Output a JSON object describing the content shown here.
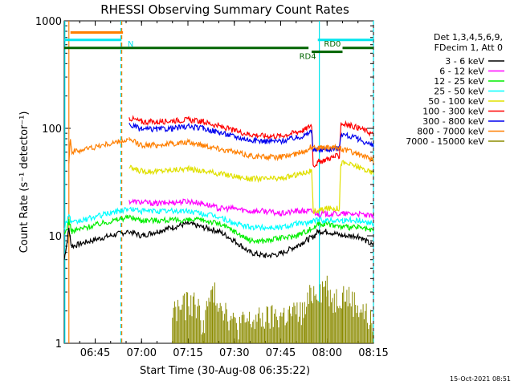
{
  "chart_data": {
    "type": "line",
    "title": "RHESSI Observing Summary Count Rates",
    "xlabel": "Start Time (30-Aug-08 06:35:22)",
    "ylabel": "Count Rate (s⁻¹ detector⁻¹)",
    "yscale": "log",
    "ylim": [
      1,
      1000
    ],
    "xlim_min": [
      0,
      100
    ],
    "x_ticks": [
      "06:45",
      "07:00",
      "07:15",
      "07:30",
      "07:45",
      "08:00",
      "08:15"
    ],
    "x_tick_minutes": [
      10,
      25,
      40,
      55,
      70,
      85,
      100
    ],
    "y_ticks": [
      "1",
      "10",
      "100",
      "1000"
    ],
    "y_tick_values": [
      1,
      10,
      100,
      1000
    ],
    "legend_header": [
      "Det 1,3,4,5,6,9,",
      "FDecim 1, Att 0"
    ],
    "annotations": [
      {
        "text": "N",
        "at_min": 20.5,
        "y": 620,
        "color": "#00e5ee"
      },
      {
        "text": "RD0",
        "at_min": 84,
        "y": 620,
        "color": "#006400"
      },
      {
        "text": "RD4",
        "at_min": 76,
        "y": 475,
        "color": "#006400"
      }
    ],
    "flag_bars": [
      {
        "name": "E",
        "color": "#ff7f00",
        "segments": [
          [
            2,
            19
          ]
        ],
        "y": 780
      },
      {
        "name": "N",
        "color": "#00e5ee",
        "segments": [
          [
            0,
            18.5
          ],
          [
            82,
            100
          ]
        ],
        "y": 665
      },
      {
        "name": "RD0",
        "color": "#006400",
        "segments": [
          [
            0,
            79
          ],
          [
            90,
            100
          ]
        ],
        "y": 560
      },
      {
        "name": "RD4",
        "color": "#006400",
        "segments": [
          [
            80,
            90
          ]
        ],
        "y": 515
      }
    ],
    "vlines": [
      {
        "at_min": 0.2,
        "color": "#00e5ee",
        "style": "solid"
      },
      {
        "at_min": 1.5,
        "color": "#ff7f00",
        "style": "solid"
      },
      {
        "at_min": 18.3,
        "color": "#00e5ee",
        "style": "dashed"
      },
      {
        "at_min": 18.6,
        "color": "#ff7f00",
        "style": "dashed"
      },
      {
        "at_min": 82.5,
        "color": "#00e5ee",
        "style": "solid"
      },
      {
        "at_min": 100,
        "color": "#00e5ee",
        "style": "dashed"
      }
    ],
    "series": [
      {
        "name": "3 - 6 keV",
        "color": "#000000",
        "x": [
          0,
          1,
          1.5,
          2,
          2.5,
          21,
          25,
          30,
          35,
          40,
          45,
          50,
          55,
          60,
          65,
          70,
          75,
          78,
          81,
          82,
          85,
          90,
          95,
          100
        ],
        "y": [
          6,
          9,
          12,
          9,
          8,
          11,
          10,
          11,
          12,
          13,
          12,
          11,
          9,
          7,
          6.5,
          6.8,
          8,
          9,
          10,
          11,
          11,
          10,
          10,
          8
        ]
      },
      {
        "name": "6 - 12 keV",
        "color": "#ff00ff",
        "x": [
          21,
          30,
          40,
          45,
          50,
          55,
          60,
          65,
          70,
          75,
          78,
          80,
          82,
          85,
          90,
          95,
          100
        ],
        "y": [
          21,
          20,
          21,
          20,
          18,
          18,
          17,
          17,
          16,
          17,
          17,
          17,
          16,
          16,
          16,
          16,
          15
        ]
      },
      {
        "name": "12 - 25 keV",
        "color": "#00ee00",
        "x": [
          0,
          1,
          1.5,
          2,
          2.5,
          21,
          25,
          30,
          35,
          40,
          45,
          50,
          55,
          60,
          65,
          70,
          75,
          78,
          81,
          82,
          85,
          90,
          95,
          100
        ],
        "y": [
          10,
          12,
          14,
          12,
          11,
          15,
          14,
          14,
          14,
          14,
          14,
          13,
          11,
          9,
          9,
          9.5,
          10,
          11,
          12,
          13,
          13,
          12,
          12,
          11
        ]
      },
      {
        "name": "25 - 50 keV",
        "color": "#00ffff",
        "x": [
          0,
          1,
          1.5,
          2,
          2.5,
          21,
          25,
          30,
          35,
          40,
          45,
          50,
          55,
          60,
          65,
          70,
          75,
          78,
          81,
          82,
          85,
          90,
          95,
          100
        ],
        "y": [
          12,
          14,
          16,
          14,
          13,
          18,
          17,
          17,
          17,
          17,
          16,
          15,
          13,
          12,
          12,
          12,
          13,
          13,
          14,
          14,
          14,
          14,
          14,
          13
        ]
      },
      {
        "name": "50 - 100 keV",
        "color": "#e0e000",
        "x": [
          21,
          25,
          30,
          35,
          40,
          45,
          50,
          55,
          60,
          65,
          70,
          75,
          78,
          80,
          80.5,
          82,
          85,
          88,
          89,
          89.5,
          90,
          95,
          100
        ],
        "y": [
          43,
          40,
          40,
          41,
          42,
          40,
          38,
          36,
          34,
          34,
          34,
          37,
          39,
          40,
          17,
          17,
          18,
          18,
          18,
          48,
          48,
          44,
          38
        ]
      },
      {
        "name": "100 - 300 keV",
        "color": "#ff0000",
        "x": [
          21,
          25,
          30,
          35,
          40,
          45,
          50,
          55,
          60,
          65,
          70,
          75,
          78,
          80,
          80.5,
          82,
          85,
          88,
          89,
          89.5,
          90,
          95,
          100
        ],
        "y": [
          125,
          115,
          115,
          118,
          120,
          115,
          105,
          95,
          88,
          85,
          85,
          92,
          98,
          108,
          45,
          48,
          52,
          55,
          55,
          112,
          110,
          102,
          88
        ]
      },
      {
        "name": "300 - 800 keV",
        "color": "#0000ee",
        "x": [
          21,
          25,
          30,
          35,
          40,
          45,
          50,
          55,
          60,
          65,
          70,
          75,
          78,
          80,
          80.5,
          82,
          85,
          88,
          89,
          89.5,
          90,
          95,
          100
        ],
        "y": [
          108,
          98,
          98,
          100,
          104,
          100,
          92,
          84,
          78,
          76,
          76,
          82,
          86,
          95,
          62,
          63,
          64,
          65,
          65,
          90,
          88,
          80,
          68
        ]
      },
      {
        "name": "800 - 7000 keV",
        "color": "#ff7f00",
        "x": [
          1.5,
          2,
          2.5,
          21,
          25,
          30,
          35,
          40,
          45,
          50,
          55,
          60,
          65,
          70,
          75,
          78,
          80,
          80.5,
          82,
          85,
          88,
          89,
          89.5,
          90,
          95,
          100
        ],
        "y": [
          50,
          80,
          60,
          78,
          70,
          70,
          72,
          74,
          70,
          65,
          60,
          56,
          54,
          54,
          58,
          62,
          68,
          68,
          66,
          66,
          66,
          66,
          66,
          64,
          58,
          50
        ]
      },
      {
        "name": "7000 - 15000 keV",
        "color": "#8b8b00",
        "x": [
          35,
          42,
          45,
          48,
          55,
          78,
          80,
          85,
          87,
          90,
          100
        ],
        "y": [
          2,
          2.5,
          1.5,
          3,
          1.5,
          2,
          3,
          3.5,
          2.5,
          3,
          1.5
        ]
      }
    ]
  },
  "footer": {
    "timestamp": "15-Oct-2021 08:51"
  }
}
